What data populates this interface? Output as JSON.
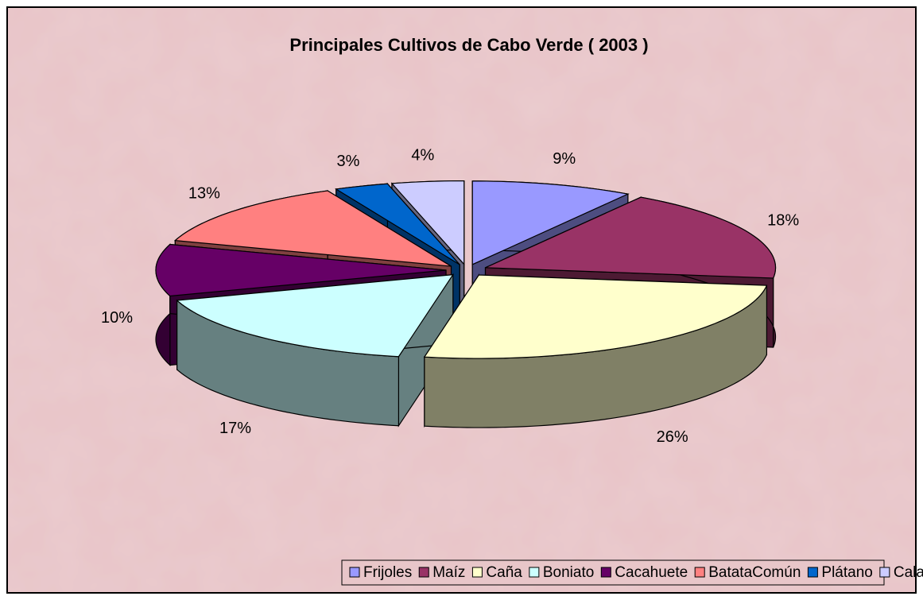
{
  "chart_data": {
    "type": "pie",
    "title": "Principales Cultivos de Cabo Verde ( 2003 )",
    "categories": [
      "Frijoles",
      "Maíz",
      "Caña",
      "Boniato",
      "Cacahuete",
      "BatataComún",
      "Plátano",
      "Calabaza"
    ],
    "values": [
      9,
      18,
      26,
      17,
      10,
      13,
      3,
      4
    ],
    "value_labels": [
      "9%",
      "18%",
      "26%",
      "17%",
      "10%",
      "13%",
      "3%",
      "4%"
    ],
    "colors": [
      "#9999ff",
      "#993366",
      "#ffffcc",
      "#ccffff",
      "#660066",
      "#ff8080",
      "#0066cc",
      "#ccccff"
    ],
    "legend": "bottom"
  }
}
